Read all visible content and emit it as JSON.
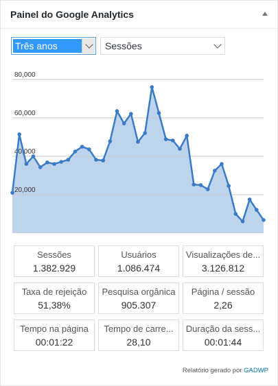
{
  "header": {
    "title": "Painel do Google Analytics"
  },
  "controls": {
    "period": "Três anos",
    "metric": "Sessões"
  },
  "chart_data": {
    "type": "area",
    "values": [
      21000,
      51400,
      36000,
      40000,
      34300,
      36800,
      36000,
      37100,
      38200,
      42500,
      45000,
      43600,
      38200,
      37800,
      47800,
      63500,
      57100,
      62100,
      47500,
      52100,
      76000,
      62500,
      48900,
      48200,
      43900,
      50700,
      25300,
      25000,
      22800,
      32500,
      36000,
      24600,
      10000,
      6100,
      17500,
      12100,
      6800
    ],
    "color": "#3a7bc8",
    "ylim": [
      0,
      85300
    ],
    "yticks": [
      {
        "value": 20000,
        "label": "20,000"
      },
      {
        "value": 40000,
        "label": "40,000"
      },
      {
        "value": 60000,
        "label": "60,000"
      },
      {
        "value": 80000,
        "label": "80,000"
      }
    ],
    "grid": true
  },
  "stats": [
    {
      "label": "Sessões",
      "value": "1.382.929"
    },
    {
      "label": "Usuários",
      "value": "1.086.474"
    },
    {
      "label": "Visualizações de...",
      "value": "3.126.812"
    },
    {
      "label": "Taxa de rejeição",
      "value": "51,38%"
    },
    {
      "label": "Pesquisa orgânica",
      "value": "905.307"
    },
    {
      "label": "Página / sessão",
      "value": "2,26"
    },
    {
      "label": "Tempo na página",
      "value": "00:01:22"
    },
    {
      "label": "Tempo de carre...",
      "value": "28,10"
    },
    {
      "label": "Duração da sess...",
      "value": "00:01:44"
    }
  ],
  "footer": {
    "text": "Relatório gerado por",
    "link": "GADWP"
  }
}
